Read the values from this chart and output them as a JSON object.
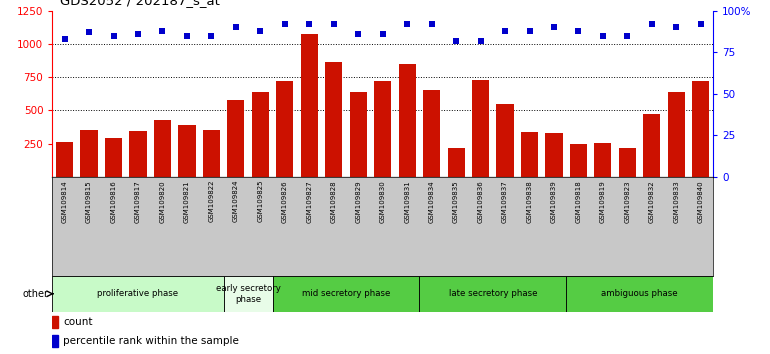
{
  "title": "GDS2052 / 202187_s_at",
  "samples": [
    "GSM109814",
    "GSM109815",
    "GSM109816",
    "GSM109817",
    "GSM109820",
    "GSM109821",
    "GSM109822",
    "GSM109824",
    "GSM109825",
    "GSM109826",
    "GSM109827",
    "GSM109828",
    "GSM109829",
    "GSM109830",
    "GSM109831",
    "GSM109834",
    "GSM109835",
    "GSM109836",
    "GSM109837",
    "GSM109838",
    "GSM109839",
    "GSM109818",
    "GSM109819",
    "GSM109823",
    "GSM109832",
    "GSM109833",
    "GSM109840"
  ],
  "counts": [
    265,
    355,
    295,
    345,
    430,
    390,
    350,
    580,
    635,
    720,
    1075,
    865,
    640,
    720,
    850,
    650,
    215,
    730,
    550,
    340,
    330,
    250,
    255,
    215,
    470,
    640,
    720
  ],
  "percentile_ranks": [
    83,
    87,
    85,
    86,
    88,
    85,
    85,
    90,
    88,
    92,
    92,
    92,
    86,
    86,
    92,
    92,
    82,
    82,
    88,
    88,
    90,
    88,
    85,
    85,
    92,
    90,
    92
  ],
  "phases": [
    {
      "label": "proliferative phase",
      "start": 0,
      "end": 7,
      "color": "#c8fac8"
    },
    {
      "label": "early secretory\nphase",
      "start": 7,
      "end": 9,
      "color": "#e8fce8"
    },
    {
      "label": "mid secretory phase",
      "start": 9,
      "end": 15,
      "color": "#66cc55"
    },
    {
      "label": "late secretory phase",
      "start": 15,
      "end": 21,
      "color": "#66cc55"
    },
    {
      "label": "ambiguous phase",
      "start": 21,
      "end": 27,
      "color": "#66cc55"
    }
  ],
  "ylim_left": [
    0,
    1250
  ],
  "ylim_right": [
    0,
    100
  ],
  "yticks_left": [
    250,
    500,
    750,
    1000,
    1250
  ],
  "yticks_right": [
    0,
    25,
    50,
    75,
    100
  ],
  "bar_color": "#cc1100",
  "dot_color": "#0000cc",
  "xtick_bg_color": "#c8c8c8",
  "plot_bg": "#ffffff",
  "other_label": "other",
  "gridlines": [
    500,
    750,
    1000
  ],
  "phase_colors": {
    "proliferative phase": "#c8fac8",
    "early secretory\nphase": "#e8fce8",
    "mid secretory phase": "#55cc44",
    "late secretory phase": "#55cc44",
    "ambiguous phase": "#55cc44"
  }
}
